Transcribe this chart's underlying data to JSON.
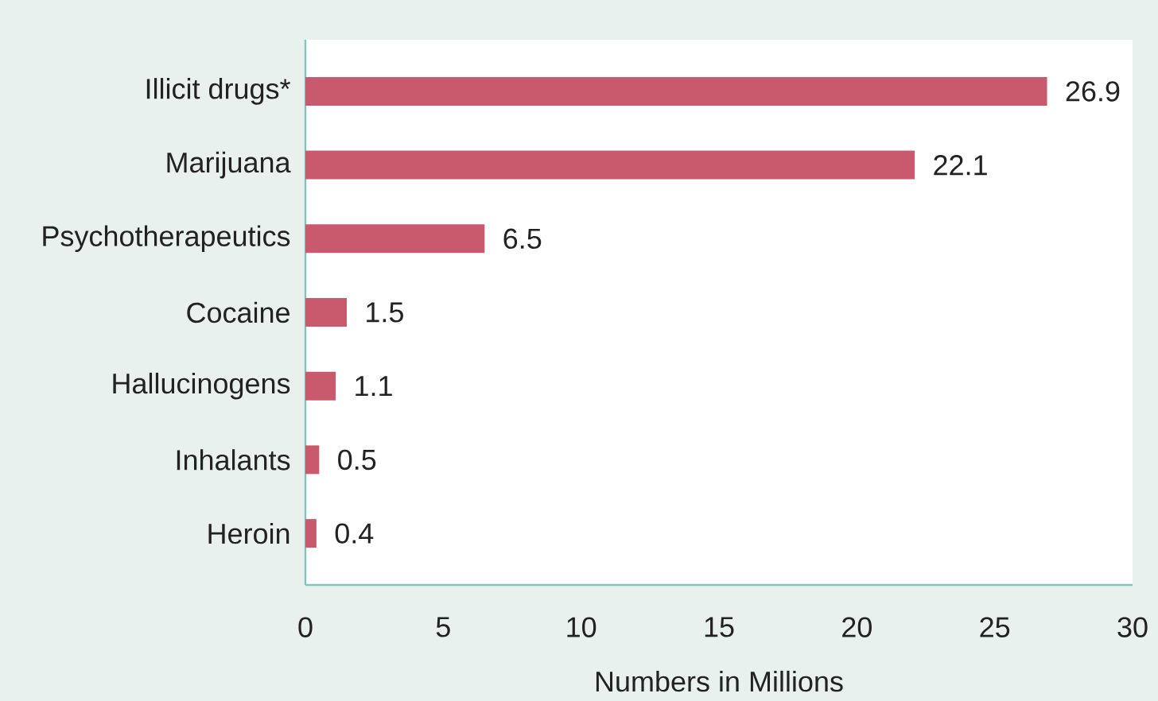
{
  "chart_data": {
    "type": "bar",
    "orientation": "horizontal",
    "categories": [
      "Illicit drugs*",
      "Marijuana",
      "Psychotherapeutics",
      "Cocaine",
      "Hallucinogens",
      "Inhalants",
      "Heroin"
    ],
    "values": [
      26.9,
      22.1,
      6.5,
      1.5,
      1.1,
      0.5,
      0.4
    ],
    "color": "#c95a6d",
    "xlabel": "Numbers in Millions",
    "xlim": [
      0,
      30
    ],
    "xticks": [
      0,
      5,
      10,
      15,
      20,
      25,
      30
    ],
    "data_labels": true
  }
}
